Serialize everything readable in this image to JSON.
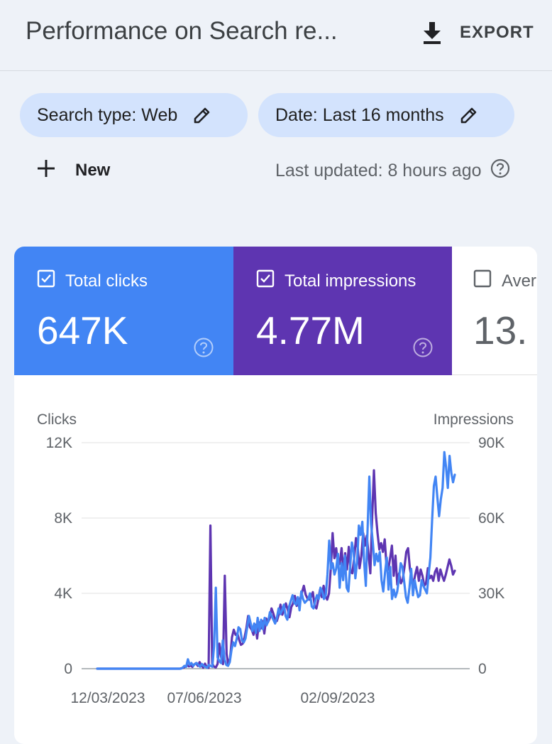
{
  "header": {
    "title": "Performance on Search re...",
    "export_label": "EXPORT"
  },
  "filters": {
    "search_type": "Search type: Web",
    "date": "Date: Last 16 months"
  },
  "toolbar": {
    "new_label": "New",
    "last_updated": "Last updated: 8 hours ago"
  },
  "metrics": [
    {
      "label": "Total clicks",
      "value": "647K",
      "checked": true,
      "color": "#4285f4"
    },
    {
      "label": "Total impressions",
      "value": "4.77M",
      "checked": true,
      "color": "#5e35b1"
    },
    {
      "label": "Aver",
      "value": "13.",
      "checked": false,
      "color": "#ffffff"
    }
  ],
  "chart_data": {
    "type": "line",
    "left_axis_title": "Clicks",
    "right_axis_title": "Impressions",
    "left_ticks": [
      "0",
      "4K",
      "8K",
      "12K"
    ],
    "right_ticks": [
      "0",
      "30K",
      "60K",
      "90K"
    ],
    "x_tick_labels": [
      "12/03/2023",
      "07/06/2023",
      "02/09/2023"
    ],
    "ylim_left": [
      0,
      12000
    ],
    "ylim_right": [
      0,
      90000
    ],
    "series": [
      {
        "name": "Total impressions",
        "axis": "right",
        "color": "#5e35b1",
        "values": [
          0,
          0,
          0,
          0,
          0,
          0,
          0,
          0,
          0,
          0,
          0,
          0,
          0,
          0,
          0,
          0,
          0,
          0,
          0,
          0,
          0,
          0,
          0,
          0,
          0,
          0,
          0,
          0,
          0,
          0,
          0,
          0,
          0,
          0,
          0,
          0,
          0,
          0,
          0,
          0,
          0,
          0,
          0,
          0,
          0,
          0,
          0,
          200,
          400,
          800,
          1500,
          900,
          1300,
          700,
          1700,
          2200,
          1100,
          2600,
          1300,
          400,
          2000,
          600,
          300,
          57000,
          2000,
          800,
          500,
          1900,
          10000,
          4500,
          1800,
          37000,
          6000,
          1500,
          4200,
          12500,
          15500,
          13500,
          14000,
          11500,
          9500,
          10000,
          12500,
          16000,
          21000,
          16500,
          15500,
          13500,
          17500,
          12000,
          18500,
          16000,
          19000,
          14000,
          20000,
          18500,
          20000,
          24000,
          22000,
          19500,
          19000,
          21500,
          25500,
          21500,
          23500,
          26000,
          23500,
          20500,
          24500,
          26000,
          29000,
          25000,
          26500,
          28000,
          30500,
          33000,
          29500,
          28000,
          27500,
          28500,
          30500,
          25000,
          24000,
          27500,
          31500,
          28500,
          33000,
          29000,
          27500,
          30000,
          40000,
          54000,
          44000,
          48000,
          41000,
          42000,
          48000,
          38500,
          46000,
          39500,
          48500,
          38500,
          38000,
          44000,
          52000,
          48000,
          40000,
          45000,
          54000,
          49000,
          53000,
          45500,
          38000,
          60000,
          79000,
          62000,
          54000,
          47500,
          50000,
          46500,
          51500,
          41000,
          39500,
          44000,
          49000,
          37000,
          45000,
          33500,
          38000,
          34000,
          35500,
          40500,
          46500,
          48000,
          40000,
          36000,
          34000,
          37500,
          40500,
          35000,
          39500,
          37000,
          33000,
          34000,
          40000,
          36000,
          37000,
          35000,
          38500,
          40000,
          35000,
          39500,
          37000,
          35000,
          37500,
          40500,
          43500,
          41000,
          37500,
          39000
        ]
      },
      {
        "name": "Total clicks",
        "axis": "left",
        "color": "#4285f4",
        "values": [
          0,
          0,
          0,
          0,
          0,
          0,
          0,
          0,
          0,
          0,
          0,
          0,
          0,
          0,
          0,
          0,
          0,
          0,
          0,
          0,
          0,
          0,
          0,
          0,
          0,
          0,
          0,
          0,
          0,
          0,
          0,
          0,
          0,
          0,
          0,
          0,
          0,
          0,
          0,
          0,
          0,
          0,
          0,
          0,
          0,
          0,
          0,
          0,
          0,
          50,
          150,
          100,
          500,
          200,
          300,
          150,
          250,
          300,
          200,
          100,
          250,
          150,
          100,
          50,
          200,
          150,
          100,
          1200,
          4300,
          600,
          400,
          300,
          1500,
          500,
          200,
          150,
          350,
          1000,
          1400,
          1200,
          1600,
          2200,
          2100,
          1500,
          1400,
          1600,
          2200,
          2800,
          2400,
          2000,
          2400,
          1900,
          2700,
          2000,
          2600,
          2100,
          2700,
          2300,
          2500,
          3000,
          2800,
          2600,
          2400,
          2700,
          3200,
          2900,
          3100,
          3400,
          2800,
          2600,
          3300,
          3600,
          3900,
          3500,
          3400,
          3800,
          3100,
          4100,
          3700,
          3500,
          3600,
          3700,
          4000,
          3300,
          3200,
          3600,
          3900,
          3700,
          4300,
          4100,
          3700,
          3900,
          5000,
          6800,
          5300,
          5600,
          5000,
          5300,
          6100,
          4300,
          5600,
          4700,
          6000,
          4300,
          4100,
          5400,
          6700,
          6200,
          4800,
          5700,
          7600,
          7100,
          7800,
          5700,
          4400,
          7400,
          10200,
          7700,
          6700,
          5500,
          6100,
          5700,
          6200,
          4700,
          4100,
          5100,
          5900,
          4200,
          5400,
          3700,
          4200,
          3800,
          4100,
          4800,
          5600,
          5400,
          4600,
          3800,
          3500,
          4300,
          5300,
          3900,
          4700,
          4200,
          3800,
          3900,
          4700,
          4400,
          4200,
          4000,
          5000,
          5900,
          7900,
          9700,
          10200,
          9100,
          8100,
          9000,
          9600,
          11500,
          10700,
          9600,
          11300,
          10400,
          9900,
          10300
        ]
      }
    ]
  }
}
